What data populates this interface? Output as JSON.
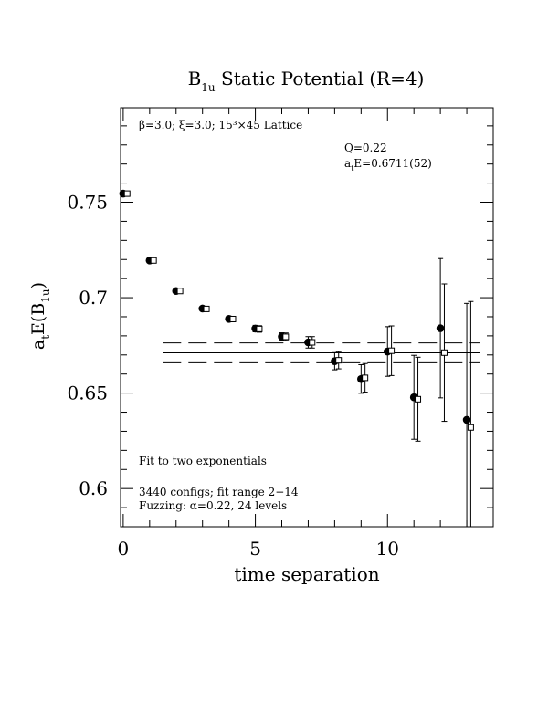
{
  "chart_data": {
    "type": "scatter",
    "title": "B",
    "title_sub": "1u",
    "title_rest": " Static Potential (R=4)",
    "xlabel": "time separation",
    "ylabel_main": "a",
    "ylabel_sub1": "t",
    "ylabel_mid": "E(B",
    "ylabel_sub2": "1u",
    "ylabel_end": ")",
    "xlim": [
      -0.1,
      14.0
    ],
    "ylim": [
      0.58,
      0.7995
    ],
    "xticks": [
      {
        "value": 0,
        "label": "0"
      },
      {
        "value": 5,
        "label": "5"
      },
      {
        "value": 10,
        "label": "10"
      }
    ],
    "yticks": [
      {
        "value": 0.6,
        "label": "0.6"
      },
      {
        "value": 0.65,
        "label": "0.65"
      },
      {
        "value": 0.7,
        "label": "0.7"
      },
      {
        "value": 0.75,
        "label": "0.75"
      }
    ],
    "annotations": {
      "lattice_text": "β=3.0; ξ=3.0; 15³×45 Lattice",
      "q_text": "Q=0.22",
      "ate_prefix": "a",
      "ate_sub": "t",
      "ate_rest": "E=0.6711(52)",
      "fit_text": "Fit to two exponentials",
      "configs_text": "3440 configs; fit range 2−14",
      "fuzzing_text": "Fuzzing: α=0.22, 24 levels"
    },
    "fit": {
      "value": 0.6711,
      "error": 0.0052,
      "x_start": 1.5,
      "x_end": 13.5
    },
    "series": [
      {
        "marker": "filled-circle",
        "points": [
          {
            "x": 0,
            "y": 0.7545,
            "err": 0.0008
          },
          {
            "x": 1,
            "y": 0.7195,
            "err": 0.0008
          },
          {
            "x": 2,
            "y": 0.7035,
            "err": 0.001
          },
          {
            "x": 3,
            "y": 0.6943,
            "err": 0.0012
          },
          {
            "x": 4,
            "y": 0.6889,
            "err": 0.0014
          },
          {
            "x": 5,
            "y": 0.6838,
            "err": 0.0017
          },
          {
            "x": 6,
            "y": 0.6796,
            "err": 0.002
          },
          {
            "x": 7,
            "y": 0.6766,
            "err": 0.003
          },
          {
            "x": 8,
            "y": 0.6667,
            "err": 0.0045
          },
          {
            "x": 9,
            "y": 0.6574,
            "err": 0.0075
          },
          {
            "x": 10,
            "y": 0.6718,
            "err": 0.013
          },
          {
            "x": 11,
            "y": 0.6478,
            "err": 0.022
          },
          {
            "x": 12,
            "y": 0.684,
            "err": 0.0365
          },
          {
            "x": 13,
            "y": 0.636,
            "err": 0.061
          }
        ]
      },
      {
        "marker": "open-square",
        "points": [
          {
            "x": 0.15,
            "y": 0.7545,
            "err": 0.0008
          },
          {
            "x": 1.15,
            "y": 0.7195,
            "err": 0.0008
          },
          {
            "x": 2.15,
            "y": 0.7035,
            "err": 0.001
          },
          {
            "x": 3.15,
            "y": 0.6941,
            "err": 0.0012
          },
          {
            "x": 4.15,
            "y": 0.6888,
            "err": 0.0014
          },
          {
            "x": 5.15,
            "y": 0.6836,
            "err": 0.0017
          },
          {
            "x": 6.15,
            "y": 0.6795,
            "err": 0.002
          },
          {
            "x": 7.15,
            "y": 0.6766,
            "err": 0.003
          },
          {
            "x": 8.15,
            "y": 0.6672,
            "err": 0.0045
          },
          {
            "x": 9.15,
            "y": 0.658,
            "err": 0.0075
          },
          {
            "x": 10.15,
            "y": 0.6722,
            "err": 0.013
          },
          {
            "x": 11.15,
            "y": 0.6468,
            "err": 0.022
          },
          {
            "x": 12.15,
            "y": 0.6712,
            "err": 0.036
          },
          {
            "x": 13.15,
            "y": 0.632,
            "err": 0.066
          }
        ]
      }
    ],
    "grid": false,
    "legend": "none"
  }
}
